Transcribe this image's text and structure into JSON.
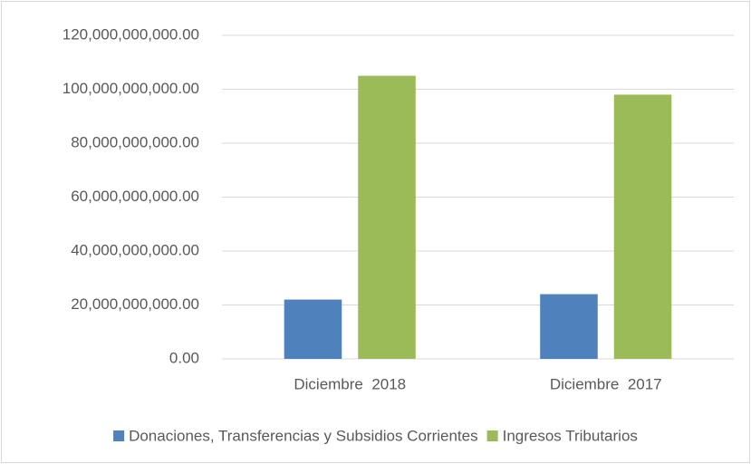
{
  "chart_data": {
    "type": "bar",
    "categories": [
      "Diciembre  2018",
      "Diciembre  2017"
    ],
    "series": [
      {
        "name": "Donaciones, Transferencias y Subsidios Corrientes",
        "color": "#4f81bd",
        "values": [
          22000000000,
          24000000000
        ]
      },
      {
        "name": "Ingresos Tributarios",
        "color": "#9bbb59",
        "values": [
          105000000000,
          98000000000
        ]
      }
    ],
    "ylim": [
      0,
      120000000000
    ],
    "yticks": [
      {
        "value": 0,
        "label": "0.00"
      },
      {
        "value": 20000000000,
        "label": "20,000,000,000.00"
      },
      {
        "value": 40000000000,
        "label": "40,000,000,000.00"
      },
      {
        "value": 60000000000,
        "label": "60,000,000,000.00"
      },
      {
        "value": 80000000000,
        "label": "80,000,000,000.00"
      },
      {
        "value": 100000000000,
        "label": "100,000,000,000.00"
      },
      {
        "value": 120000000000,
        "label": "120,000,000,000.00"
      }
    ],
    "grid": true,
    "legend": "bottom"
  }
}
